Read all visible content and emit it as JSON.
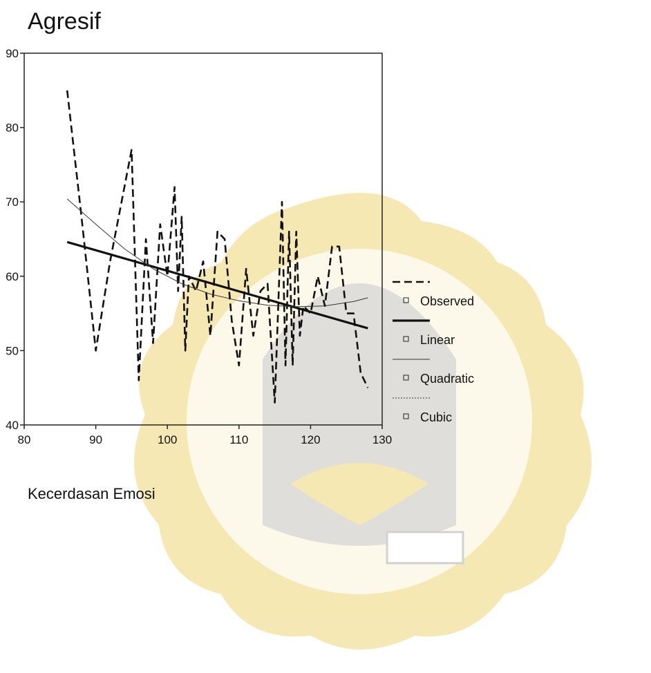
{
  "chart_data": {
    "type": "line",
    "title": "Agresif",
    "xlabel": "Kecerdasan Emosi",
    "ylabel": "",
    "xlim": [
      80,
      130
    ],
    "ylim": [
      40,
      90
    ],
    "x_ticks": [
      "80",
      "90",
      "100",
      "110",
      "120",
      "130"
    ],
    "y_ticks": [
      "40",
      "50",
      "60",
      "70",
      "80",
      "90"
    ],
    "grid": false,
    "legend_position": "right",
    "series": [
      {
        "name": "Observed",
        "style": "dashed",
        "x": [
          86,
          88,
          90,
          92,
          95,
          96,
          97,
          98,
          99,
          100,
          101,
          101.5,
          102,
          102.5,
          103,
          104,
          105,
          106,
          107,
          108,
          109,
          110,
          111,
          112,
          113,
          114,
          115,
          116,
          116.5,
          117,
          117.5,
          118,
          118.5,
          119,
          120,
          121,
          122,
          123,
          124,
          125,
          126,
          127,
          128
        ],
        "y": [
          85,
          68,
          50,
          62,
          77,
          46,
          65,
          51,
          67,
          60,
          72,
          58,
          68,
          50,
          60,
          58,
          62,
          52,
          66,
          65,
          54,
          48,
          61,
          52,
          58,
          59,
          43,
          70,
          48,
          66,
          48,
          66,
          52,
          56,
          55,
          60,
          56,
          64,
          64,
          55,
          55,
          47,
          45
        ]
      },
      {
        "name": "Linear",
        "style": "thick",
        "x": [
          86,
          128
        ],
        "y": [
          64.6,
          53.0
        ]
      },
      {
        "name": "Quadratic",
        "style": "thin",
        "x": [
          86,
          90,
          94,
          98,
          102,
          106,
          110,
          114,
          118,
          122,
          126,
          128
        ],
        "y": [
          70.4,
          67.0,
          63.7,
          61.0,
          59.0,
          57.6,
          56.7,
          56.1,
          55.9,
          56.0,
          56.6,
          57.1
        ]
      },
      {
        "name": "Cubic",
        "style": "dotted",
        "x": [],
        "y": []
      }
    ]
  }
}
